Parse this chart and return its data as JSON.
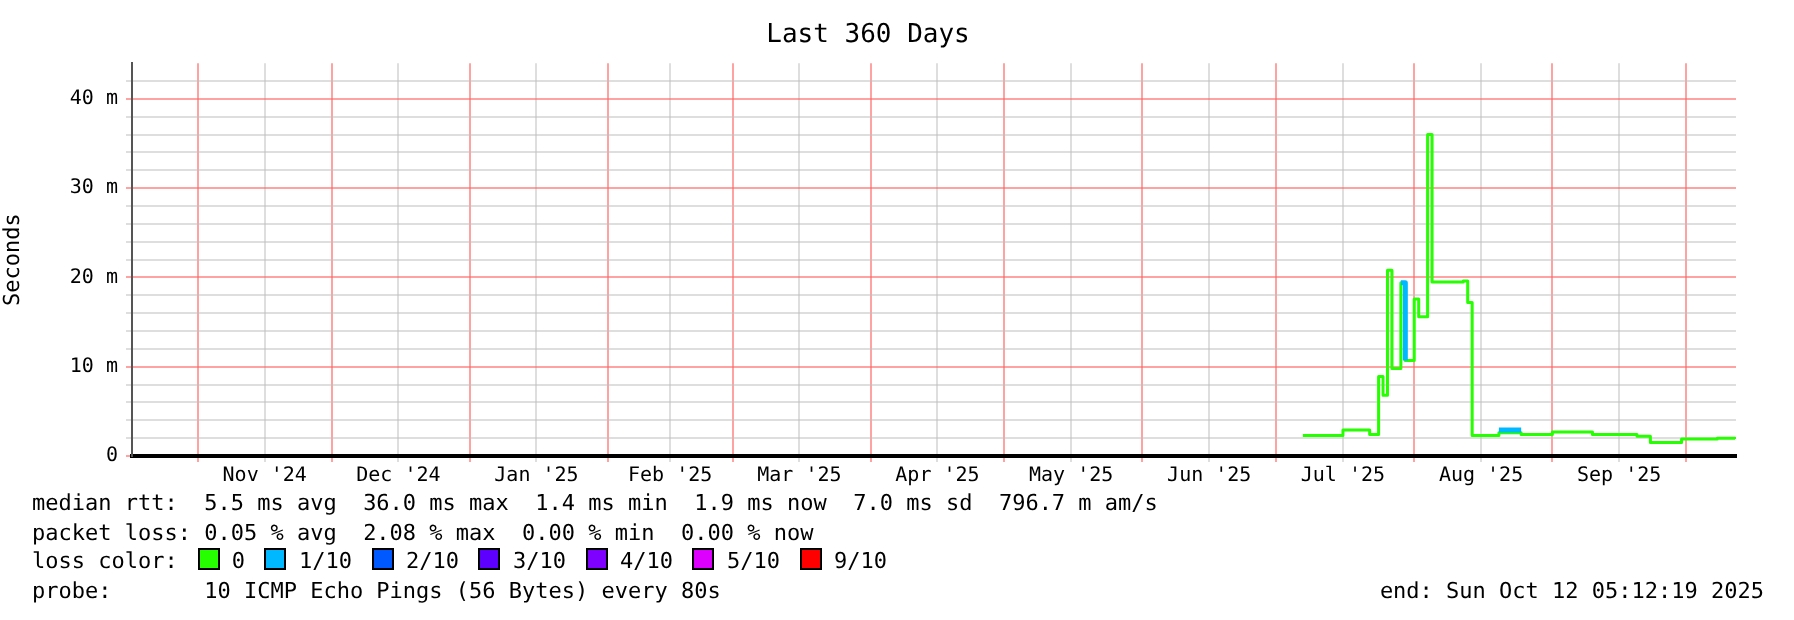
{
  "chart_data": {
    "type": "step",
    "title": "Last 360 Days",
    "ylabel": "Seconds",
    "legend_title": "loss color:",
    "legend": "bottom",
    "grid": true,
    "marker": "none",
    "line_style": "solid",
    "annotations": [
      "median rtt:  5.5 ms avg  36.0 ms max  1.4 ms min  1.9 ms now  7.0 ms sd  796.7 m am/s",
      "packet loss: 0.05 % avg  2.08 % max  0.00 % min  0.00 % now",
      "probe:       10 ICMP Echo Pings (56 Bytes) every 80s",
      "end: Sun Oct 12 05:12:19 2025"
    ],
    "x": [
      "2025-07-07",
      "2025-07-16",
      "2025-07-22",
      "2025-07-24",
      "2025-07-25",
      "2025-07-26",
      "2025-07-27",
      "2025-07-29",
      "2025-07-30",
      "2025-08-01",
      "2025-08-02",
      "2025-08-04",
      "2025-08-05",
      "2025-08-12",
      "2025-08-13",
      "2025-08-14",
      "2025-08-20",
      "2025-08-25",
      "2025-09-01",
      "2025-09-10",
      "2025-09-20",
      "2025-09-23",
      "2025-09-30",
      "2025-10-08",
      "2025-10-12"
    ],
    "series": [
      {
        "name": "0",
        "color": "#26ff00",
        "values": [
          2.3,
          2.9,
          2.4,
          8.9,
          6.8,
          20.8,
          9.8,
          19.4,
          10.7,
          17.6,
          15.6,
          36.0,
          19.5,
          19.6,
          17.2,
          2.3,
          2.6,
          2.4,
          2.7,
          2.4,
          2.2,
          1.5,
          1.9,
          2.0,
          1.9
        ]
      },
      {
        "name": "1/10",
        "color": "#00b8ff",
        "values": [
          null,
          null,
          null,
          null,
          null,
          null,
          null,
          19.4,
          10.7,
          null,
          null,
          null,
          null,
          null,
          null,
          null,
          2.9,
          2.9,
          null,
          null,
          null,
          null,
          null,
          null,
          null
        ]
      },
      {
        "name": "2/10",
        "color": "#0059ff",
        "values": [
          null,
          null,
          null,
          null,
          null,
          null,
          null,
          null,
          null,
          null,
          null,
          null,
          null,
          null,
          null,
          null,
          null,
          null,
          null,
          null,
          null,
          null,
          null,
          null,
          null
        ]
      },
      {
        "name": "3/10",
        "color": "#5e00ff",
        "values": [
          null,
          null,
          null,
          null,
          null,
          null,
          null,
          null,
          null,
          null,
          null,
          null,
          null,
          null,
          null,
          null,
          null,
          null,
          null,
          null,
          null,
          null,
          null,
          null,
          null
        ]
      },
      {
        "name": "4/10",
        "color": "#7e00ff",
        "values": [
          null,
          null,
          null,
          null,
          null,
          null,
          null,
          null,
          null,
          null,
          null,
          null,
          null,
          null,
          null,
          null,
          null,
          null,
          null,
          null,
          null,
          null,
          null,
          null,
          null
        ]
      },
      {
        "name": "5/10",
        "color": "#dd00ff",
        "values": [
          null,
          null,
          null,
          null,
          null,
          null,
          null,
          null,
          null,
          null,
          null,
          null,
          null,
          null,
          null,
          null,
          null,
          null,
          null,
          null,
          null,
          null,
          null,
          null,
          null
        ]
      },
      {
        "name": "9/10",
        "color": "#ff0000",
        "values": [
          null,
          null,
          null,
          null,
          null,
          null,
          null,
          null,
          null,
          null,
          null,
          null,
          null,
          null,
          null,
          null,
          null,
          null,
          null,
          null,
          null,
          null,
          null,
          null,
          null
        ]
      }
    ],
    "xlim": [
      "2024-10-17T05:12",
      "2025-10-12T05:12"
    ],
    "xticks": [
      {
        "value": "2024-11-01",
        "label": null
      },
      {
        "value": "2024-11-16",
        "label": "Nov '24"
      },
      {
        "value": "2024-12-01",
        "label": null
      },
      {
        "value": "2024-12-16",
        "label": "Dec '24"
      },
      {
        "value": "2025-01-01",
        "label": null
      },
      {
        "value": "2025-01-16",
        "label": "Jan '25"
      },
      {
        "value": "2025-02-01",
        "label": null
      },
      {
        "value": "2025-02-15",
        "label": "Feb '25"
      },
      {
        "value": "2025-03-01",
        "label": null
      },
      {
        "value": "2025-03-16",
        "label": "Mar '25"
      },
      {
        "value": "2025-04-01",
        "label": null
      },
      {
        "value": "2025-04-16",
        "label": "Apr '25"
      },
      {
        "value": "2025-05-01",
        "label": null
      },
      {
        "value": "2025-05-16",
        "label": "May '25"
      },
      {
        "value": "2025-06-01",
        "label": null
      },
      {
        "value": "2025-06-16",
        "label": "Jun '25"
      },
      {
        "value": "2025-07-01",
        "label": null
      },
      {
        "value": "2025-07-16",
        "label": "Jul '25"
      },
      {
        "value": "2025-08-01",
        "label": null
      },
      {
        "value": "2025-08-16",
        "label": "Aug '25"
      },
      {
        "value": "2025-09-01",
        "label": null
      },
      {
        "value": "2025-09-16",
        "label": "Sep '25"
      },
      {
        "value": "2025-10-01",
        "label": null
      }
    ],
    "ylim": [
      0,
      44
    ],
    "yticks": [
      {
        "value": 0,
        "label": "0"
      },
      {
        "value": 2,
        "label": null
      },
      {
        "value": 4,
        "label": null
      },
      {
        "value": 6,
        "label": null
      },
      {
        "value": 8,
        "label": null
      },
      {
        "value": 10,
        "label": "10 m"
      },
      {
        "value": 12,
        "label": null
      },
      {
        "value": 14,
        "label": null
      },
      {
        "value": 16,
        "label": null
      },
      {
        "value": 18,
        "label": null
      },
      {
        "value": 20,
        "label": "20 m"
      },
      {
        "value": 22,
        "label": null
      },
      {
        "value": 24,
        "label": null
      },
      {
        "value": 26,
        "label": null
      },
      {
        "value": 28,
        "label": null
      },
      {
        "value": 30,
        "label": "30 m"
      },
      {
        "value": 32,
        "label": null
      },
      {
        "value": 34,
        "label": null
      },
      {
        "value": 36,
        "label": null
      },
      {
        "value": 38,
        "label": null
      },
      {
        "value": 40,
        "label": "40 m"
      },
      {
        "value": 42,
        "label": null
      }
    ]
  }
}
